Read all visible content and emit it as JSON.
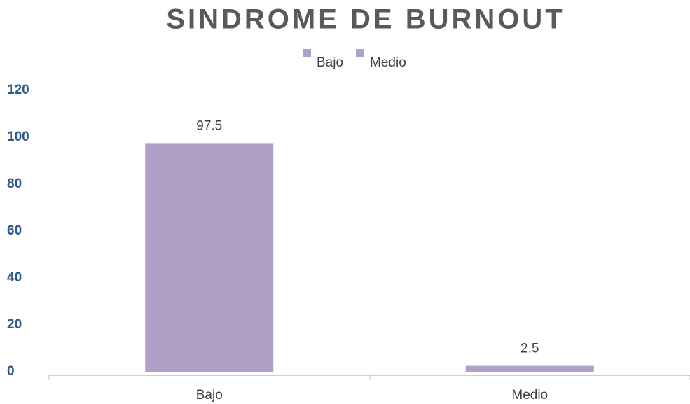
{
  "chart_data": {
    "type": "bar",
    "title": "SINDROME DE BURNOUT",
    "categories": [
      "Bajo",
      "Medio"
    ],
    "values": [
      97.5,
      2.5
    ],
    "color": "#b09fc7",
    "ylim": [
      0,
      120
    ],
    "yticks": [
      0,
      20,
      40,
      60,
      80,
      100,
      120
    ],
    "grid": false,
    "legend": "top"
  }
}
